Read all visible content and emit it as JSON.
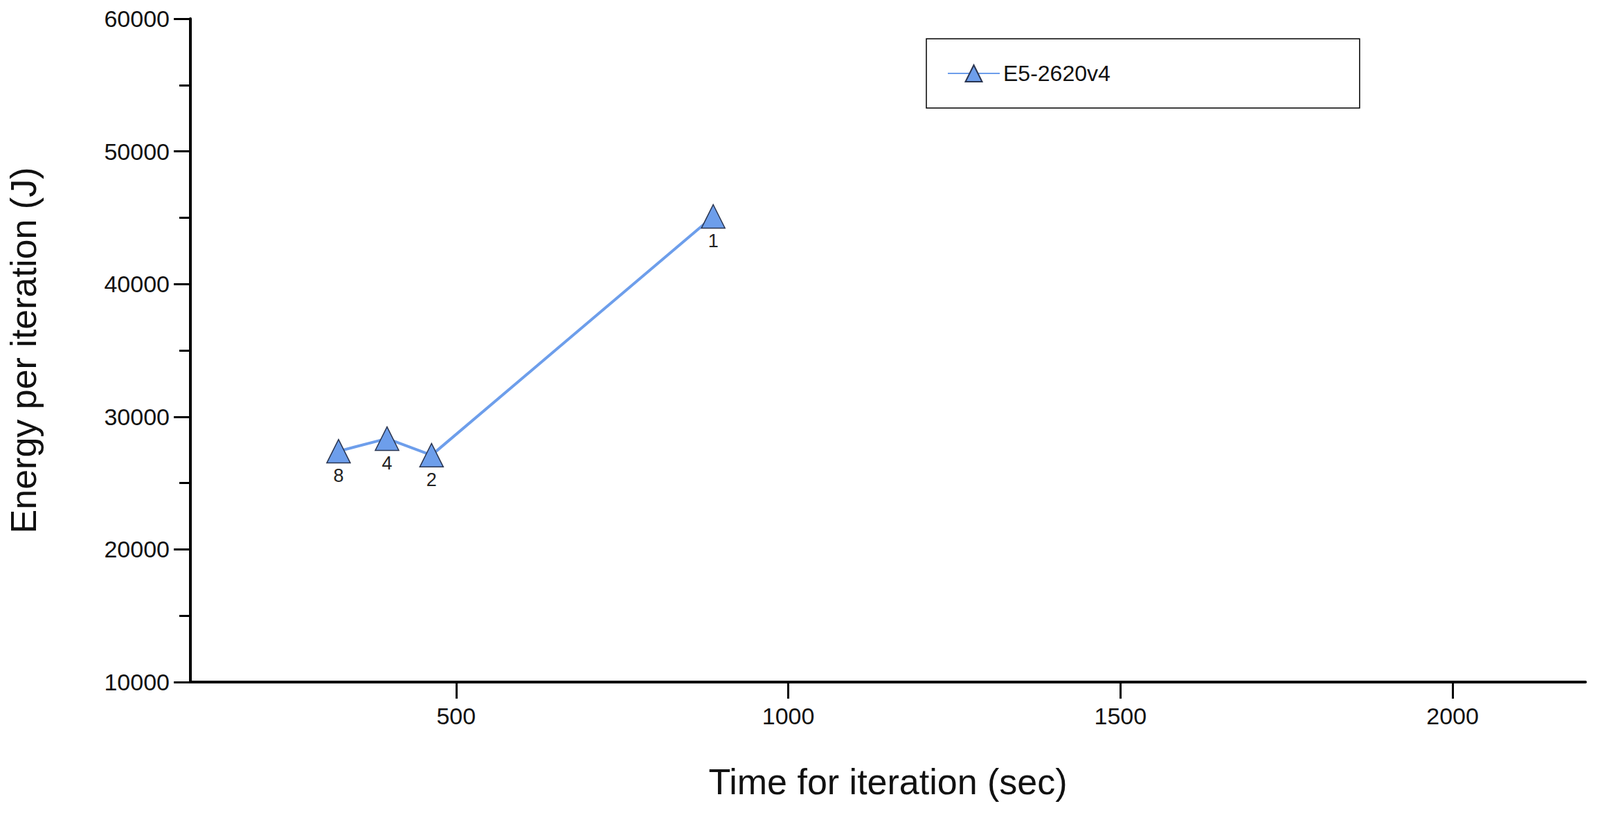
{
  "chart_data": {
    "type": "line",
    "x_label": "Time for iteration (sec)",
    "y_label": "Energy per iteration (J)",
    "xlim": [
      100,
      2200
    ],
    "xticks": [
      500,
      1000,
      1500,
      2000
    ],
    "ylim": [
      10000,
      60000
    ],
    "yticks": [
      10000,
      20000,
      30000,
      40000,
      50000,
      60000
    ],
    "grid": false,
    "legend": "top-right",
    "series": [
      {
        "name": "E5-2620v4",
        "color": "#6d9eeb",
        "marker": "triangle",
        "line_style": "solid",
        "x": [
          323,
          396,
          463,
          887
        ],
        "values": [
          27400,
          28350,
          27100,
          45100
        ],
        "point_labels": [
          "8",
          "4",
          "2",
          "1"
        ]
      }
    ]
  }
}
